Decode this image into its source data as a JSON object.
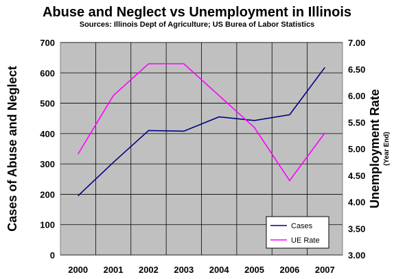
{
  "chart_data": {
    "type": "line",
    "title": "Abuse and Neglect vs Unemployment in Illinois",
    "subtitle": "Sources: Illinois Dept of Agriculture; US Burea of Labor Statistics",
    "ylabel": "Cases of Abuse and Neglect",
    "y2label": "Unemployment Rate",
    "y2sublabel": "(Year End)",
    "categories": [
      "2000",
      "2001",
      "2002",
      "2003",
      "2004",
      "2005",
      "2006",
      "2007"
    ],
    "ylim": [
      0,
      700
    ],
    "yticks": [
      "0",
      "100",
      "200",
      "300",
      "400",
      "500",
      "600",
      "700"
    ],
    "y2lim": [
      3.0,
      7.0
    ],
    "y2ticks": [
      "3.00",
      "3.50",
      "4.00",
      "4.50",
      "5.00",
      "5.50",
      "6.00",
      "6.50",
      "7.00"
    ],
    "series": [
      {
        "name": "Cases",
        "axis": "left",
        "color": "#000080",
        "values": [
          195,
          305,
          410,
          408,
          455,
          443,
          462,
          618
        ]
      },
      {
        "name": "UE Rate",
        "axis": "right",
        "color": "#ff00ff",
        "values": [
          4.9,
          6.0,
          6.6,
          6.6,
          6.0,
          5.4,
          4.4,
          5.3
        ]
      }
    ],
    "grid": true,
    "plot_background": "#c0c0c0",
    "legend_position": "bottom-right"
  }
}
